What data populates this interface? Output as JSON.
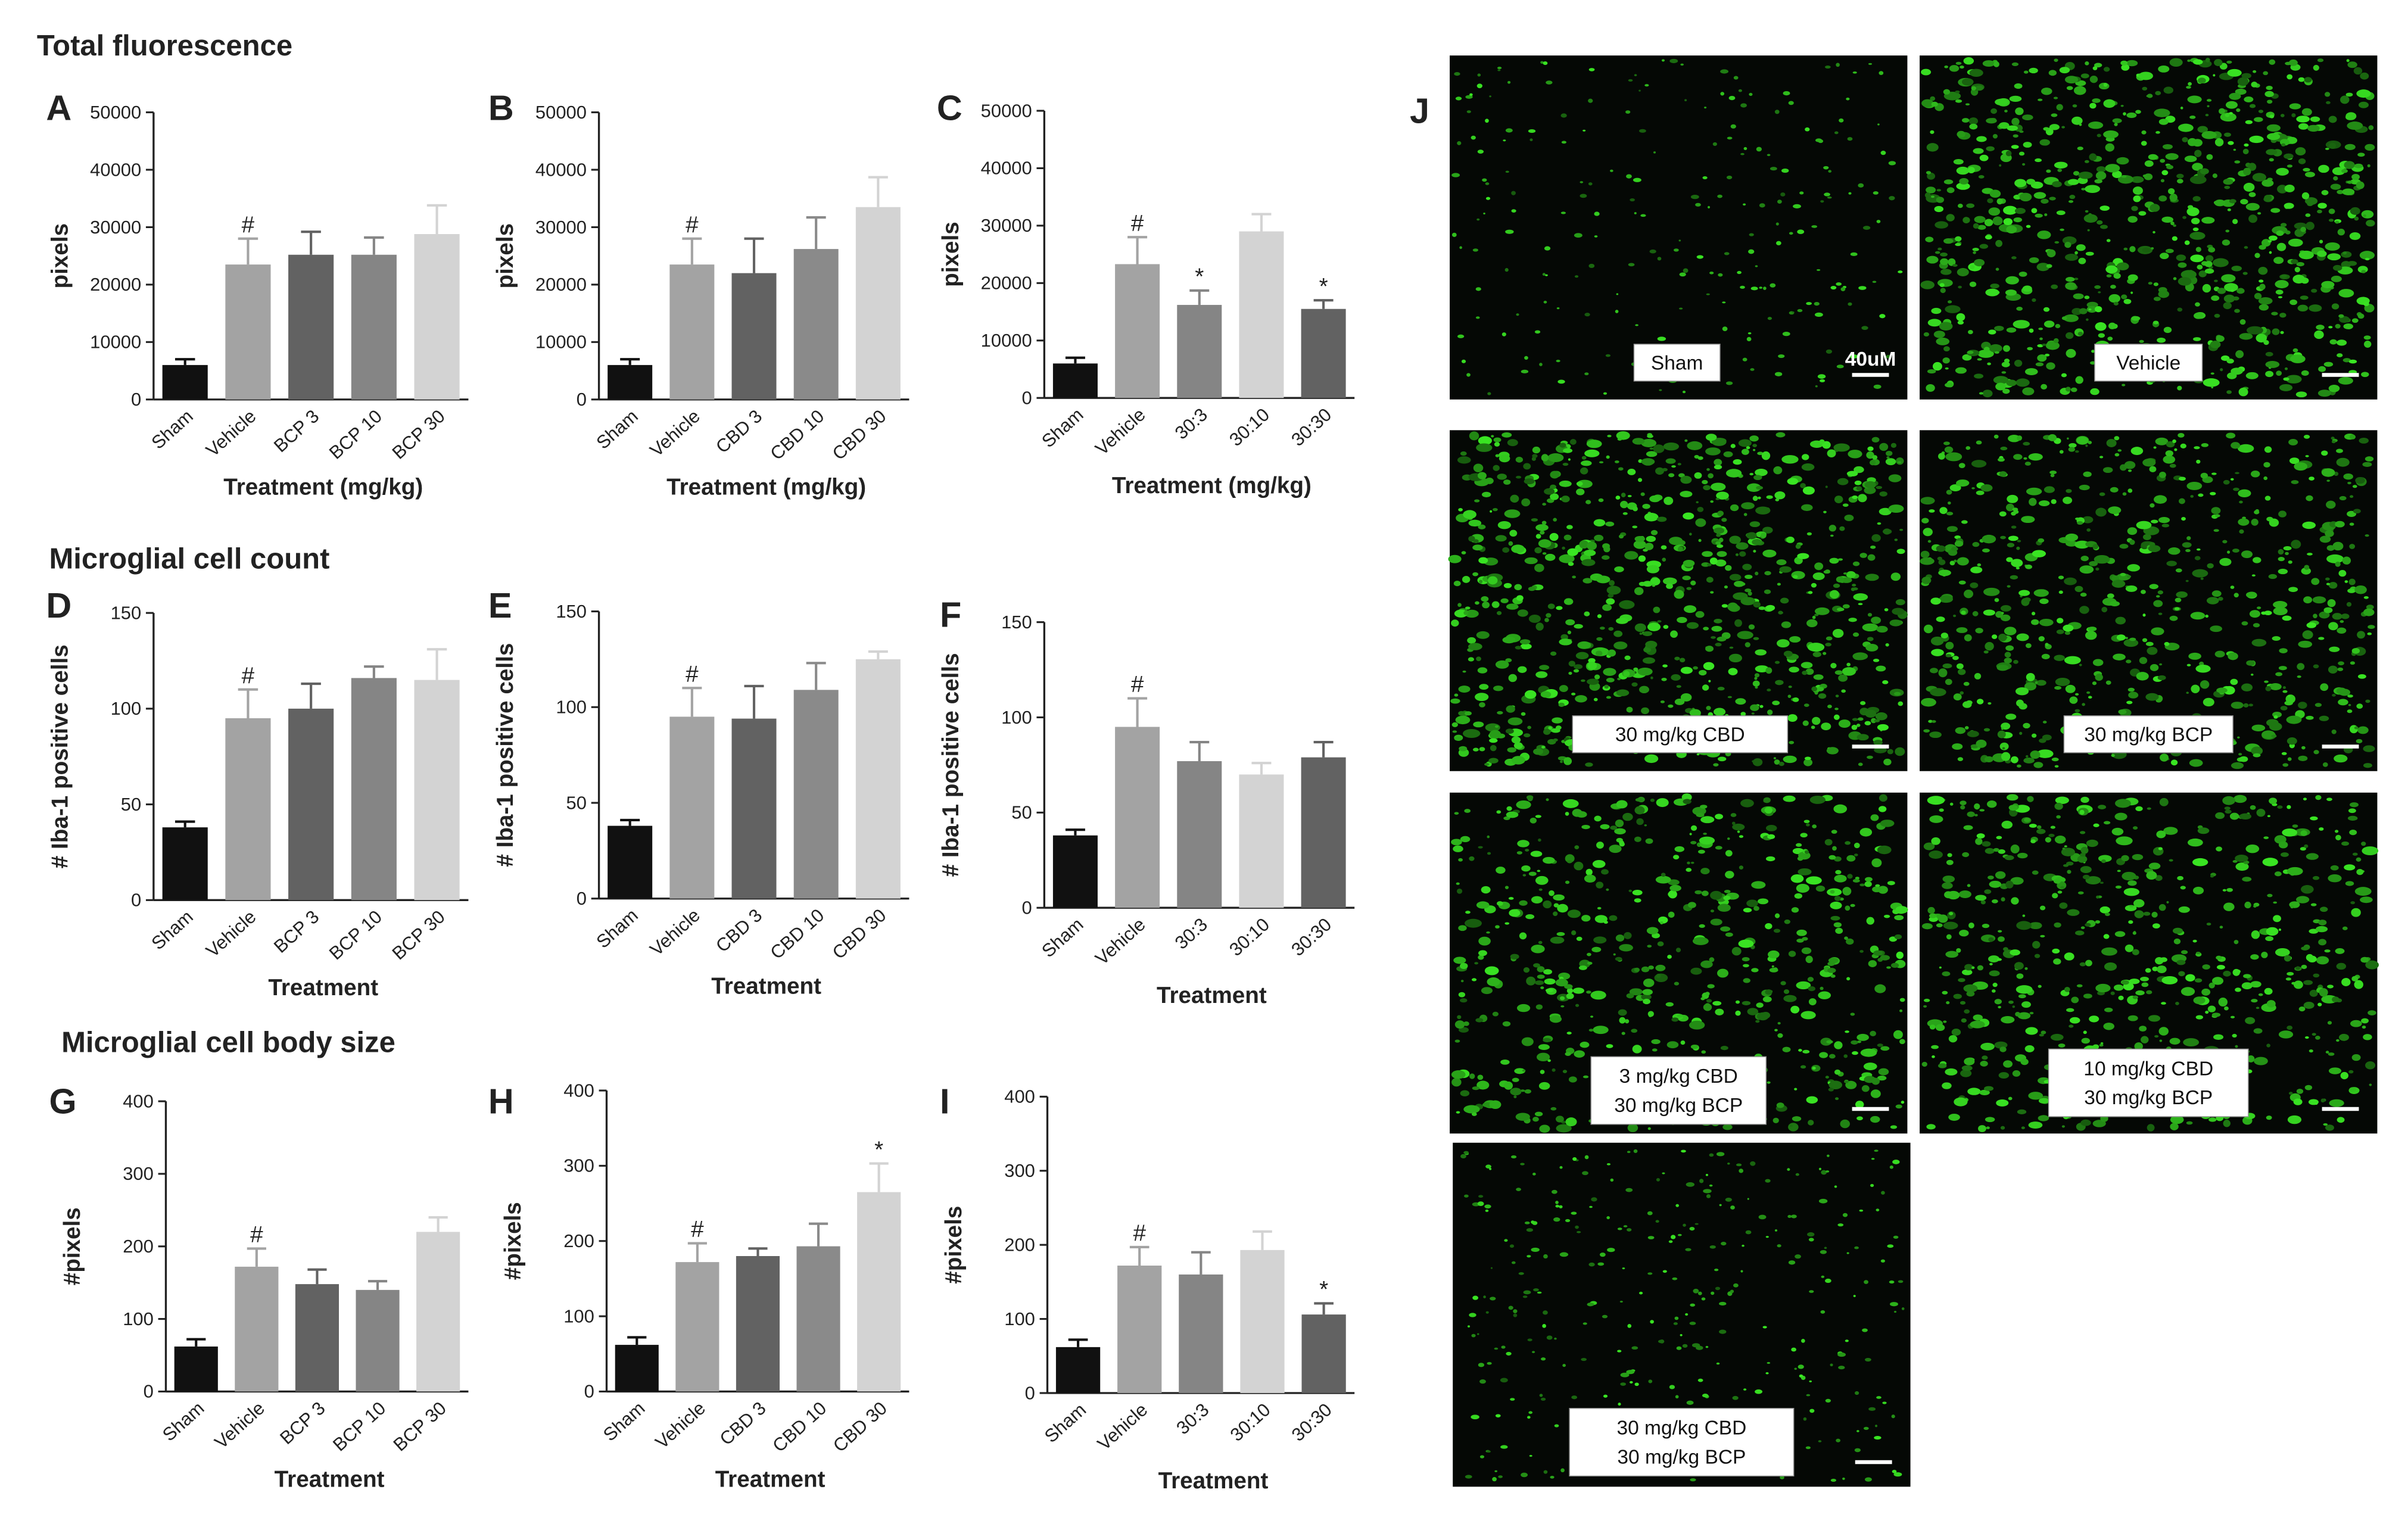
{
  "sections": [
    "Total fluorescence",
    "Microglial cell count",
    "Microglial cell body size"
  ],
  "chart_data": [
    {
      "type": "bar",
      "panel": "A",
      "ylabel": "pixels",
      "xlabel": "Treatment (mg/kg)",
      "categories": [
        "Sham",
        "Vehicle",
        "BCP 3",
        "BCP 10",
        "BCP 30"
      ],
      "values": [
        6000,
        23500,
        25200,
        25200,
        28800
      ],
      "errors": [
        1000,
        4500,
        4000,
        3000,
        5000
      ],
      "annotations": [
        null,
        "#",
        null,
        null,
        null
      ],
      "colors": [
        "#111111",
        "#a3a3a3",
        "#626262",
        "#858585",
        "#d3d3d3"
      ],
      "ylim": [
        0,
        50000
      ],
      "yticks": [
        0,
        10000,
        20000,
        30000,
        40000,
        50000
      ]
    },
    {
      "type": "bar",
      "panel": "B",
      "ylabel": "pixels",
      "xlabel": "Treatment (mg/kg)",
      "categories": [
        "Sham",
        "Vehicle",
        "CBD 3",
        "CBD 10",
        "CBD 30"
      ],
      "values": [
        6000,
        23500,
        22000,
        26200,
        33500
      ],
      "errors": [
        1000,
        4500,
        6000,
        5500,
        5200
      ],
      "annotations": [
        null,
        "#",
        null,
        null,
        null
      ],
      "colors": [
        "#111111",
        "#a3a3a3",
        "#626262",
        "#8a8a8a",
        "#d3d3d3"
      ],
      "ylim": [
        0,
        50000
      ],
      "yticks": [
        0,
        10000,
        20000,
        30000,
        40000,
        50000
      ]
    },
    {
      "type": "bar",
      "panel": "C",
      "ylabel": "pixels",
      "xlabel": "Treatment (mg/kg)",
      "categories": [
        "Sham",
        "Vehicle",
        "30:3",
        "30:10",
        "30:30"
      ],
      "values": [
        6000,
        23300,
        16200,
        29000,
        15500
      ],
      "errors": [
        1000,
        4700,
        2500,
        3000,
        1500
      ],
      "annotations": [
        null,
        "#",
        "*",
        null,
        "*"
      ],
      "colors": [
        "#111111",
        "#a3a3a3",
        "#858585",
        "#d3d3d3",
        "#626262"
      ],
      "ylim": [
        0,
        50000
      ],
      "yticks": [
        0,
        10000,
        20000,
        30000,
        40000,
        50000
      ]
    },
    {
      "type": "bar",
      "panel": "D",
      "ylabel": "# Iba-1 positive cells",
      "xlabel": "Treatment",
      "categories": [
        "Sham",
        "Vehicle",
        "BCP 3",
        "BCP 10",
        "BCP 30"
      ],
      "values": [
        38,
        95,
        100,
        116,
        115
      ],
      "errors": [
        3,
        15,
        13,
        6,
        16
      ],
      "annotations": [
        null,
        "#",
        null,
        null,
        null
      ],
      "colors": [
        "#111111",
        "#a3a3a3",
        "#626262",
        "#858585",
        "#d3d3d3"
      ],
      "ylim": [
        0,
        150
      ],
      "yticks": [
        0,
        50,
        100,
        150
      ]
    },
    {
      "type": "bar",
      "panel": "E",
      "ylabel": "# Iba-1 positive cells",
      "xlabel": "Treatment",
      "categories": [
        "Sham",
        "Vehicle",
        "CBD 3",
        "CBD 10",
        "CBD 30"
      ],
      "values": [
        38,
        95,
        94,
        109,
        125
      ],
      "errors": [
        3,
        15,
        17,
        14,
        4
      ],
      "annotations": [
        null,
        "#",
        null,
        null,
        null
      ],
      "colors": [
        "#111111",
        "#a3a3a3",
        "#626262",
        "#8a8a8a",
        "#d3d3d3"
      ],
      "ylim": [
        0,
        150
      ],
      "yticks": [
        0,
        50,
        100,
        150
      ]
    },
    {
      "type": "bar",
      "panel": "F",
      "ylabel": "# Iba-1 positive cells",
      "xlabel": "Treatment",
      "categories": [
        "Sham",
        "Vehicle",
        "30:3",
        "30:10",
        "30:30"
      ],
      "values": [
        38,
        95,
        77,
        70,
        79
      ],
      "errors": [
        3,
        15,
        10,
        6,
        8
      ],
      "annotations": [
        null,
        "#",
        null,
        null,
        null
      ],
      "colors": [
        "#111111",
        "#a3a3a3",
        "#858585",
        "#d3d3d3",
        "#626262"
      ],
      "ylim": [
        0,
        150
      ],
      "yticks": [
        0,
        50,
        100,
        150
      ]
    },
    {
      "type": "bar",
      "panel": "G",
      "ylabel": "#pixels",
      "xlabel": "Treatment",
      "categories": [
        "Sham",
        "Vehicle",
        "BCP 3",
        "BCP 10",
        "BCP 30"
      ],
      "values": [
        62,
        172,
        148,
        140,
        220
      ],
      "errors": [
        10,
        25,
        20,
        12,
        20
      ],
      "annotations": [
        null,
        "#",
        null,
        null,
        null
      ],
      "colors": [
        "#111111",
        "#a3a3a3",
        "#626262",
        "#858585",
        "#d3d3d3"
      ],
      "ylim": [
        0,
        400
      ],
      "yticks": [
        0,
        100,
        200,
        300,
        400
      ]
    },
    {
      "type": "bar",
      "panel": "H",
      "ylabel": "#pixels",
      "xlabel": "Treatment",
      "categories": [
        "Sham",
        "Vehicle",
        "CBD 3",
        "CBD 10",
        "CBD 30"
      ],
      "values": [
        62,
        172,
        180,
        193,
        265
      ],
      "errors": [
        10,
        25,
        10,
        30,
        38
      ],
      "annotations": [
        null,
        "#",
        null,
        null,
        "*"
      ],
      "colors": [
        "#111111",
        "#a3a3a3",
        "#626262",
        "#8a8a8a",
        "#d3d3d3"
      ],
      "ylim": [
        0,
        400
      ],
      "yticks": [
        0,
        100,
        200,
        300,
        400
      ]
    },
    {
      "type": "bar",
      "panel": "I",
      "ylabel": "#pixels",
      "xlabel": "Treatment",
      "categories": [
        "Sham",
        "Vehicle",
        "30:3",
        "30:10",
        "30:30"
      ],
      "values": [
        62,
        172,
        160,
        193,
        106
      ],
      "errors": [
        10,
        25,
        30,
        25,
        15
      ],
      "annotations": [
        null,
        "#",
        null,
        null,
        "*"
      ],
      "colors": [
        "#111111",
        "#a3a3a3",
        "#858585",
        "#d3d3d3",
        "#626262"
      ],
      "ylim": [
        0,
        400
      ],
      "yticks": [
        0,
        100,
        200,
        300,
        400
      ]
    }
  ],
  "micrographs": {
    "panel": "J",
    "scale_bar": "40uM",
    "images": [
      {
        "label": [
          "Sham"
        ]
      },
      {
        "label": [
          "Vehicle"
        ]
      },
      {
        "label": [
          "30 mg/kg CBD"
        ]
      },
      {
        "label": [
          "30 mg/kg BCP"
        ]
      },
      {
        "label": [
          "3 mg/kg CBD",
          "30 mg/kg BCP"
        ]
      },
      {
        "label": [
          "10 mg/kg CBD",
          "30 mg/kg BCP"
        ]
      },
      {
        "label": [
          "30 mg/kg CBD",
          "30 mg/kg BCP"
        ]
      }
    ]
  }
}
